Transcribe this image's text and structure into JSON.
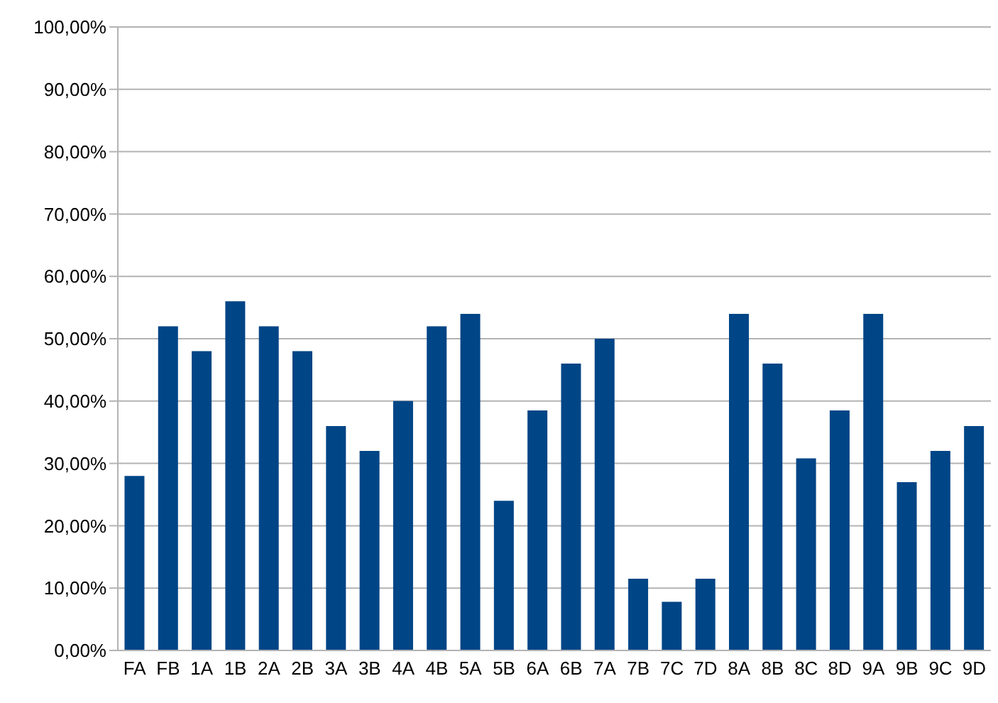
{
  "chart_data": {
    "type": "bar",
    "categories": [
      "FA",
      "FB",
      "1A",
      "1B",
      "2A",
      "2B",
      "3A",
      "3B",
      "4A",
      "4B",
      "5A",
      "5B",
      "6A",
      "6B",
      "7A",
      "7B",
      "7C",
      "7D",
      "8A",
      "8B",
      "8C",
      "8D",
      "9A",
      "9B",
      "9C",
      "9D"
    ],
    "values": [
      28,
      52,
      48,
      56,
      52,
      48,
      36,
      32,
      40,
      52,
      54,
      24,
      38.5,
      46,
      50,
      11.5,
      7.8,
      11.5,
      54,
      46,
      30.8,
      38.5,
      54,
      27,
      32,
      36
    ],
    "color": "#004586",
    "ylim": [
      0,
      100
    ],
    "yticks": [
      {
        "value": 0,
        "label": "0,00%"
      },
      {
        "value": 10,
        "label": "10,00%"
      },
      {
        "value": 20,
        "label": "20,00%"
      },
      {
        "value": 30,
        "label": "30,00%"
      },
      {
        "value": 40,
        "label": "40,00%"
      },
      {
        "value": 50,
        "label": "50,00%"
      },
      {
        "value": 60,
        "label": "60,00%"
      },
      {
        "value": 70,
        "label": "70,00%"
      },
      {
        "value": 80,
        "label": "80,00%"
      },
      {
        "value": 90,
        "label": "90,00%"
      },
      {
        "value": 100,
        "label": "100,00%"
      }
    ],
    "grid": "y"
  }
}
